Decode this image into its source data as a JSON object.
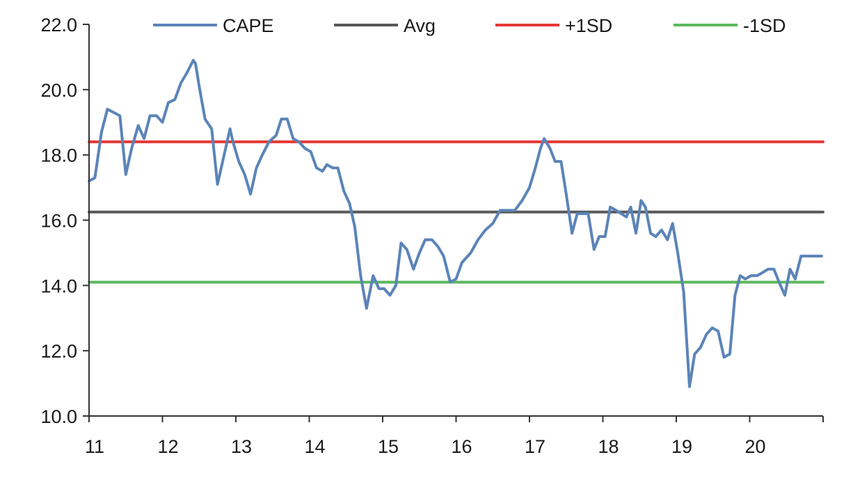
{
  "chart_data": {
    "type": "line",
    "title": "",
    "xlabel": "",
    "ylabel": "",
    "xlim": [
      11,
      21
    ],
    "ylim": [
      10,
      22
    ],
    "x_ticks": [
      11,
      12,
      13,
      14,
      15,
      16,
      17,
      18,
      19,
      20
    ],
    "x_tick_labels": [
      "11",
      "12",
      "13",
      "14",
      "15",
      "16",
      "17",
      "18",
      "19",
      "20"
    ],
    "y_ticks": [
      10,
      12,
      14,
      16,
      18,
      20,
      22
    ],
    "y_tick_labels": [
      "10.0",
      "12.0",
      "14.0",
      "16.0",
      "18.0",
      "20.0",
      "22.0"
    ],
    "grid": false,
    "legend_position": "top",
    "series": [
      {
        "name": "CAPE",
        "color": "#5b84b8",
        "x": [
          11.0,
          11.08,
          11.17,
          11.25,
          11.42,
          11.5,
          11.58,
          11.67,
          11.75,
          11.83,
          11.92,
          12.0,
          12.08,
          12.17,
          12.25,
          12.33,
          12.42,
          12.45,
          12.5,
          12.58,
          12.67,
          12.75,
          12.83,
          12.92,
          12.96,
          13.04,
          13.12,
          13.2,
          13.28,
          13.36,
          13.45,
          13.55,
          13.62,
          13.7,
          13.78,
          13.86,
          13.94,
          14.02,
          14.1,
          14.18,
          14.24,
          14.32,
          14.39,
          14.47,
          14.55,
          14.62,
          14.7,
          14.78,
          14.87,
          14.95,
          15.02,
          15.1,
          15.18,
          15.25,
          15.33,
          15.42,
          15.5,
          15.58,
          15.67,
          15.75,
          15.83,
          15.92,
          16.0,
          16.08,
          16.2,
          16.3,
          16.4,
          16.5,
          16.6,
          16.7,
          16.8,
          16.9,
          17.0,
          17.08,
          17.15,
          17.2,
          17.28,
          17.35,
          17.43,
          17.5,
          17.58,
          17.65,
          17.73,
          17.8,
          17.88,
          17.95,
          18.03,
          18.1,
          18.18,
          18.25,
          18.32,
          18.38,
          18.45,
          18.52,
          18.58,
          18.65,
          18.72,
          18.8,
          18.88,
          18.95,
          19.02,
          19.1,
          19.18,
          19.25,
          19.33,
          19.41,
          19.49,
          19.57,
          19.65,
          19.73,
          19.8,
          19.87,
          19.94,
          20.02,
          20.1,
          20.18,
          20.25,
          20.33,
          20.4,
          20.48,
          20.55,
          20.62,
          20.7,
          20.77,
          20.85,
          20.92,
          20.98
        ],
        "y": [
          17.2,
          17.3,
          18.7,
          19.4,
          19.2,
          17.4,
          18.2,
          18.9,
          18.5,
          19.2,
          19.2,
          19.0,
          19.6,
          19.7,
          20.2,
          20.5,
          20.9,
          20.8,
          20.1,
          19.1,
          18.8,
          17.1,
          17.9,
          18.8,
          18.4,
          17.8,
          17.4,
          16.8,
          17.6,
          18.0,
          18.4,
          18.6,
          19.1,
          19.1,
          18.5,
          18.4,
          18.2,
          18.1,
          17.6,
          17.5,
          17.7,
          17.6,
          17.6,
          16.9,
          16.5,
          15.8,
          14.3,
          13.3,
          14.3,
          13.9,
          13.9,
          13.7,
          14.0,
          15.3,
          15.1,
          14.5,
          15.0,
          15.4,
          15.4,
          15.2,
          14.9,
          14.1,
          14.2,
          14.7,
          15.0,
          15.4,
          15.7,
          15.9,
          16.3,
          16.3,
          16.3,
          16.6,
          17.0,
          17.6,
          18.2,
          18.5,
          18.2,
          17.8,
          17.8,
          16.8,
          15.6,
          16.2,
          16.2,
          16.2,
          15.1,
          15.5,
          15.5,
          16.4,
          16.3,
          16.2,
          16.1,
          16.4,
          15.6,
          16.6,
          16.4,
          15.6,
          15.5,
          15.7,
          15.4,
          15.9,
          15.0,
          13.8,
          10.9,
          11.9,
          12.1,
          12.5,
          12.7,
          12.6,
          11.8,
          11.9,
          13.7,
          14.3,
          14.2,
          14.3,
          14.3,
          14.4,
          14.5,
          14.5,
          14.1,
          13.7,
          14.5,
          14.2,
          14.9,
          14.9,
          14.9,
          14.9,
          14.9
        ]
      },
      {
        "name": "Avg",
        "color": "#595959",
        "x": [
          11,
          21
        ],
        "y": [
          16.25,
          16.25
        ]
      },
      {
        "name": "+1SD",
        "color": "#e53935",
        "x": [
          11,
          21
        ],
        "y": [
          18.4,
          18.4
        ]
      },
      {
        "name": "-1SD",
        "color": "#5cb85c",
        "x": [
          11,
          21
        ],
        "y": [
          14.1,
          14.1
        ]
      }
    ]
  }
}
